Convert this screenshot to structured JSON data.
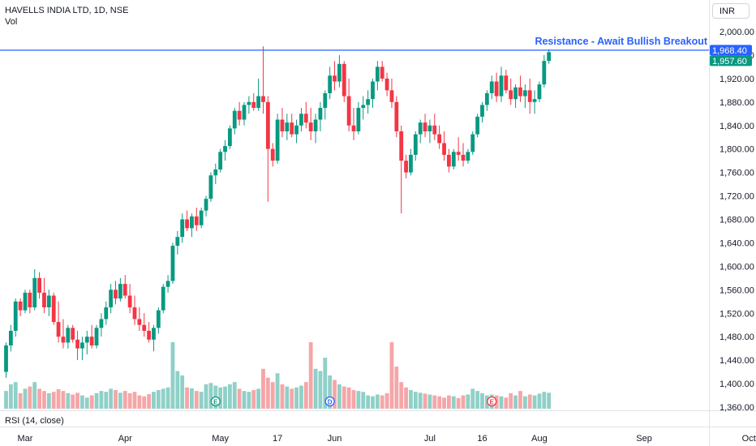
{
  "header": {
    "symbol_title": "HAVELLS INDIA LTD, 1D, NSE",
    "volume_label": "Vol",
    "currency": "INR"
  },
  "indicator": {
    "rsi_label": "RSI (14, close)"
  },
  "chart_data": {
    "type": "candlestick",
    "y_axis": {
      "min": 1360,
      "max": 2000,
      "ticks": [
        2000,
        1960,
        1920,
        1880,
        1840,
        1800,
        1760,
        1720,
        1680,
        1640,
        1600,
        1560,
        1520,
        1480,
        1440,
        1400,
        1360
      ]
    },
    "x_axis_labels": [
      {
        "label": "Mar",
        "i": 4
      },
      {
        "label": "Apr",
        "i": 25
      },
      {
        "label": "May",
        "i": 45
      },
      {
        "label": "17",
        "i": 57
      },
      {
        "label": "Jun",
        "i": 69
      },
      {
        "label": "Jul",
        "i": 89
      },
      {
        "label": "16",
        "i": 100
      },
      {
        "label": "Aug",
        "i": 112
      },
      {
        "label": "Sep",
        "i": 134
      },
      {
        "label": "Oct",
        "i": 156
      }
    ],
    "annotation": {
      "text": "Resistance - Await Bullish Breakout",
      "level": 1968.4,
      "color": "#2962ff"
    },
    "price_labels": [
      {
        "value": "1,968.40",
        "price": 1968.4,
        "color": "#2962ff"
      },
      {
        "value": "1,957.60",
        "price": 1957.6,
        "color": "#089981"
      }
    ],
    "event_markers": [
      {
        "letter": "E",
        "i": 44,
        "color": "#089981"
      },
      {
        "letter": "D",
        "i": 68,
        "color": "#2962ff"
      },
      {
        "letter": "E",
        "i": 102,
        "color": "#f23645"
      }
    ],
    "colors": {
      "up": "#089981",
      "down": "#f23645",
      "vol_up": "#8fd0c7",
      "vol_down": "#f5a6a8"
    },
    "candles": [
      [
        1420,
        1470,
        1410,
        1465,
        40
      ],
      [
        1465,
        1500,
        1455,
        1490,
        55
      ],
      [
        1490,
        1545,
        1480,
        1540,
        60
      ],
      [
        1540,
        1545,
        1515,
        1525,
        35
      ],
      [
        1525,
        1560,
        1520,
        1555,
        45
      ],
      [
        1555,
        1560,
        1520,
        1530,
        50
      ],
      [
        1530,
        1595,
        1525,
        1580,
        60
      ],
      [
        1580,
        1590,
        1545,
        1555,
        45
      ],
      [
        1555,
        1580,
        1520,
        1530,
        40
      ],
      [
        1530,
        1560,
        1515,
        1550,
        35
      ],
      [
        1550,
        1555,
        1500,
        1505,
        38
      ],
      [
        1505,
        1540,
        1470,
        1480,
        44
      ],
      [
        1480,
        1510,
        1460,
        1470,
        40
      ],
      [
        1470,
        1500,
        1460,
        1495,
        35
      ],
      [
        1495,
        1500,
        1470,
        1475,
        32
      ],
      [
        1475,
        1490,
        1440,
        1460,
        36
      ],
      [
        1460,
        1480,
        1440,
        1470,
        30
      ],
      [
        1470,
        1490,
        1450,
        1480,
        25
      ],
      [
        1480,
        1500,
        1460,
        1465,
        30
      ],
      [
        1465,
        1500,
        1460,
        1495,
        35
      ],
      [
        1495,
        1520,
        1480,
        1510,
        40
      ],
      [
        1510,
        1540,
        1500,
        1530,
        38
      ],
      [
        1530,
        1570,
        1520,
        1560,
        45
      ],
      [
        1560,
        1575,
        1535,
        1545,
        42
      ],
      [
        1545,
        1580,
        1540,
        1570,
        36
      ],
      [
        1570,
        1585,
        1545,
        1550,
        40
      ],
      [
        1550,
        1570,
        1520,
        1530,
        35
      ],
      [
        1530,
        1550,
        1500,
        1510,
        38
      ],
      [
        1510,
        1530,
        1490,
        1500,
        30
      ],
      [
        1500,
        1520,
        1480,
        1490,
        28
      ],
      [
        1490,
        1505,
        1470,
        1475,
        33
      ],
      [
        1475,
        1500,
        1455,
        1495,
        38
      ],
      [
        1495,
        1530,
        1485,
        1525,
        42
      ],
      [
        1525,
        1570,
        1520,
        1565,
        45
      ],
      [
        1565,
        1585,
        1555,
        1575,
        48
      ],
      [
        1575,
        1640,
        1570,
        1635,
        150
      ],
      [
        1635,
        1660,
        1620,
        1650,
        85
      ],
      [
        1650,
        1690,
        1640,
        1680,
        75
      ],
      [
        1680,
        1695,
        1660,
        1665,
        48
      ],
      [
        1665,
        1690,
        1650,
        1685,
        46
      ],
      [
        1685,
        1700,
        1660,
        1670,
        40
      ],
      [
        1670,
        1700,
        1665,
        1695,
        38
      ],
      [
        1695,
        1720,
        1685,
        1715,
        55
      ],
      [
        1715,
        1760,
        1710,
        1755,
        58
      ],
      [
        1755,
        1775,
        1740,
        1765,
        52
      ],
      [
        1765,
        1800,
        1760,
        1795,
        48
      ],
      [
        1795,
        1815,
        1780,
        1805,
        50
      ],
      [
        1805,
        1840,
        1800,
        1835,
        55
      ],
      [
        1835,
        1870,
        1825,
        1865,
        60
      ],
      [
        1865,
        1880,
        1840,
        1850,
        45
      ],
      [
        1850,
        1880,
        1840,
        1875,
        40
      ],
      [
        1875,
        1890,
        1860,
        1880,
        38
      ],
      [
        1880,
        1895,
        1865,
        1870,
        42
      ],
      [
        1870,
        1920,
        1865,
        1890,
        45
      ],
      [
        1890,
        1975,
        1860,
        1880,
        90
      ],
      [
        1880,
        1890,
        1710,
        1800,
        70
      ],
      [
        1800,
        1810,
        1770,
        1780,
        60
      ],
      [
        1780,
        1860,
        1775,
        1850,
        80
      ],
      [
        1850,
        1870,
        1820,
        1830,
        55
      ],
      [
        1830,
        1860,
        1815,
        1845,
        50
      ],
      [
        1845,
        1860,
        1820,
        1825,
        45
      ],
      [
        1825,
        1850,
        1810,
        1840,
        48
      ],
      [
        1840,
        1870,
        1830,
        1860,
        52
      ],
      [
        1860,
        1880,
        1835,
        1845,
        60
      ],
      [
        1845,
        1870,
        1815,
        1830,
        150
      ],
      [
        1830,
        1860,
        1810,
        1850,
        90
      ],
      [
        1850,
        1880,
        1830,
        1870,
        85
      ],
      [
        1870,
        1900,
        1850,
        1895,
        115
      ],
      [
        1895,
        1940,
        1885,
        1925,
        75
      ],
      [
        1925,
        1950,
        1900,
        1915,
        65
      ],
      [
        1915,
        1960,
        1905,
        1945,
        55
      ],
      [
        1945,
        1950,
        1880,
        1890,
        50
      ],
      [
        1890,
        1920,
        1830,
        1840,
        48
      ],
      [
        1840,
        1870,
        1815,
        1830,
        42
      ],
      [
        1830,
        1880,
        1825,
        1870,
        40
      ],
      [
        1870,
        1890,
        1850,
        1875,
        38
      ],
      [
        1875,
        1900,
        1860,
        1885,
        30
      ],
      [
        1885,
        1920,
        1870,
        1915,
        28
      ],
      [
        1915,
        1950,
        1900,
        1940,
        32
      ],
      [
        1940,
        1950,
        1915,
        1920,
        30
      ],
      [
        1920,
        1930,
        1890,
        1900,
        35
      ],
      [
        1900,
        1920,
        1870,
        1880,
        150
      ],
      [
        1880,
        1890,
        1820,
        1830,
        95
      ],
      [
        1830,
        1840,
        1690,
        1780,
        60
      ],
      [
        1780,
        1790,
        1750,
        1760,
        48
      ],
      [
        1760,
        1800,
        1755,
        1790,
        42
      ],
      [
        1790,
        1830,
        1780,
        1825,
        38
      ],
      [
        1825,
        1850,
        1810,
        1845,
        36
      ],
      [
        1845,
        1860,
        1820,
        1830,
        34
      ],
      [
        1830,
        1850,
        1810,
        1840,
        32
      ],
      [
        1840,
        1860,
        1815,
        1825,
        30
      ],
      [
        1825,
        1840,
        1800,
        1810,
        28
      ],
      [
        1810,
        1830,
        1780,
        1790,
        25
      ],
      [
        1790,
        1800,
        1760,
        1770,
        30
      ],
      [
        1770,
        1800,
        1765,
        1795,
        28
      ],
      [
        1795,
        1820,
        1780,
        1790,
        24
      ],
      [
        1790,
        1810,
        1770,
        1780,
        30
      ],
      [
        1780,
        1800,
        1775,
        1795,
        32
      ],
      [
        1795,
        1830,
        1790,
        1825,
        45
      ],
      [
        1825,
        1860,
        1820,
        1855,
        40
      ],
      [
        1855,
        1880,
        1845,
        1875,
        35
      ],
      [
        1875,
        1900,
        1865,
        1895,
        30
      ],
      [
        1895,
        1925,
        1885,
        1915,
        32
      ],
      [
        1915,
        1930,
        1880,
        1890,
        30
      ],
      [
        1890,
        1940,
        1880,
        1925,
        28
      ],
      [
        1925,
        1935,
        1895,
        1900,
        25
      ],
      [
        1900,
        1920,
        1875,
        1885,
        35
      ],
      [
        1885,
        1910,
        1870,
        1905,
        30
      ],
      [
        1905,
        1925,
        1880,
        1890,
        40
      ],
      [
        1890,
        1910,
        1870,
        1900,
        28
      ],
      [
        1900,
        1920,
        1860,
        1880,
        32
      ],
      [
        1880,
        1900,
        1860,
        1885,
        30
      ],
      [
        1885,
        1915,
        1880,
        1910,
        34
      ],
      [
        1910,
        1960,
        1905,
        1950,
        38
      ],
      [
        1950,
        1970,
        1945,
        1965,
        36
      ]
    ]
  }
}
